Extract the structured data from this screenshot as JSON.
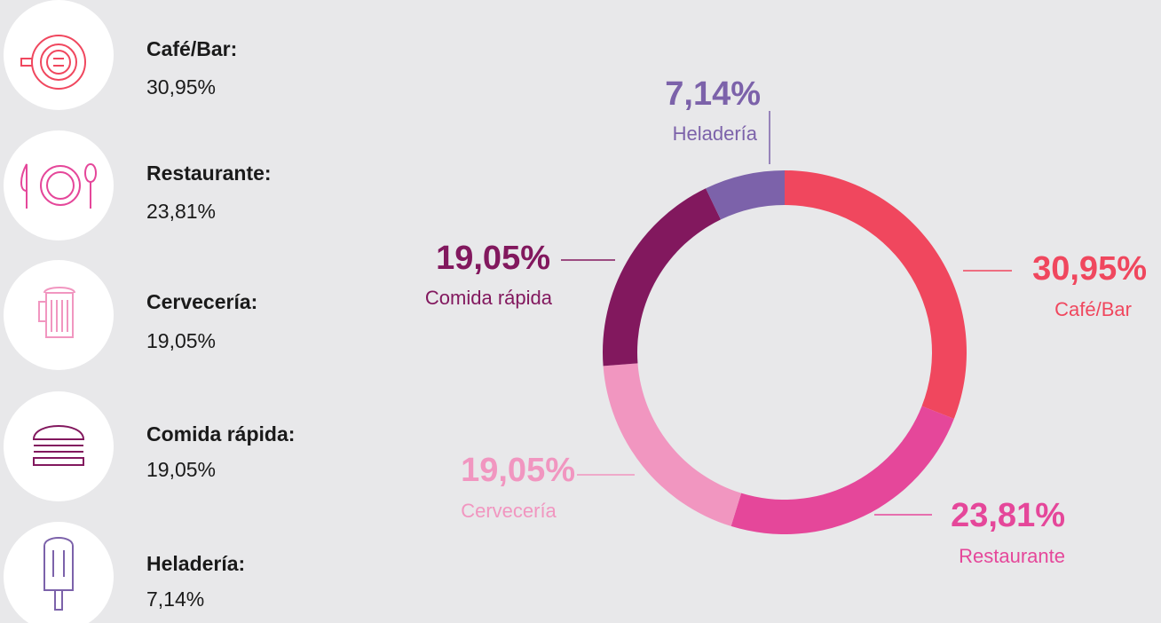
{
  "chart_data": {
    "type": "donut",
    "categories": [
      "Café/Bar",
      "Restaurante",
      "Cervecería",
      "Comida rápida",
      "Heladería"
    ],
    "values": [
      30.95,
      23.81,
      19.05,
      19.05,
      7.14
    ],
    "value_labels": [
      "30,95%",
      "23,81%",
      "19,05%",
      "19,05%",
      "7,14%"
    ],
    "colors": [
      "#f0475e",
      "#e5479a",
      "#f196c0",
      "#82185e",
      "#7c62aa"
    ],
    "legend_labels": [
      "Café/Bar:",
      "Restaurante:",
      "Cervecería:",
      "Comida rápida:",
      "Heladería:"
    ]
  }
}
